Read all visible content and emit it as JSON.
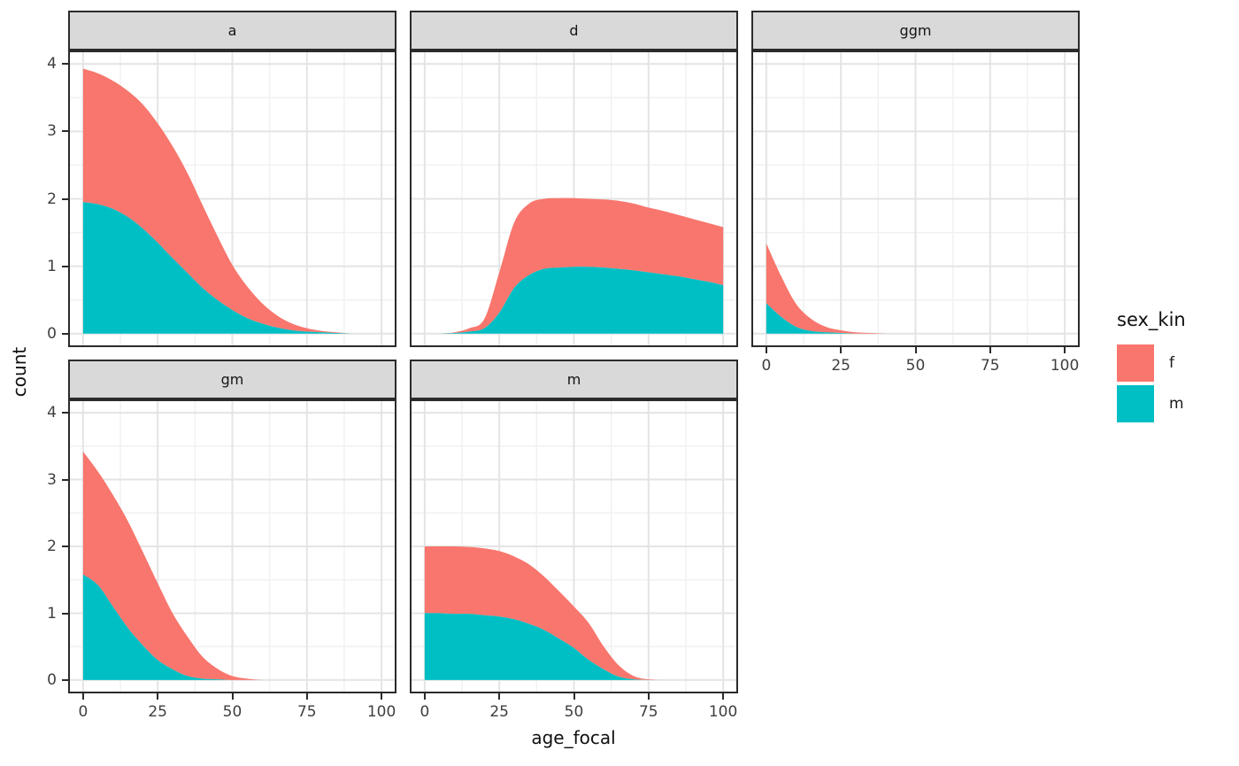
{
  "chart_data": {
    "type": "area",
    "stacked": true,
    "title": "",
    "xlabel": "age_focal",
    "ylabel": "count",
    "xlim": [
      0,
      100
    ],
    "ylim": [
      0,
      4
    ],
    "x_ticks": [
      0,
      25,
      50,
      75,
      100
    ],
    "y_ticks": [
      0,
      1,
      2,
      3,
      4
    ],
    "grid": "major and minor gridlines, light gray on white panel",
    "legend_position": "right",
    "legend_title": "sex_kin",
    "series_colors": {
      "f": "#F8766D",
      "m": "#00BFC4"
    },
    "series_order_bottom_to_top": [
      "m",
      "f"
    ],
    "x": [
      0,
      5,
      10,
      15,
      20,
      25,
      30,
      35,
      40,
      45,
      50,
      55,
      60,
      65,
      70,
      75,
      80,
      85,
      90,
      95,
      100
    ],
    "facets": [
      {
        "label": "a",
        "row": 0,
        "col": 0,
        "m": [
          1.95,
          1.92,
          1.85,
          1.73,
          1.56,
          1.35,
          1.12,
          0.9,
          0.68,
          0.5,
          0.35,
          0.23,
          0.15,
          0.09,
          0.05,
          0.03,
          0.02,
          0.01,
          0,
          0,
          0
        ],
        "f": [
          1.98,
          1.94,
          1.9,
          1.87,
          1.84,
          1.77,
          1.66,
          1.48,
          1.23,
          0.95,
          0.67,
          0.47,
          0.3,
          0.18,
          0.1,
          0.05,
          0.02,
          0.01,
          0,
          0,
          0
        ]
      },
      {
        "label": "d",
        "row": 0,
        "col": 1,
        "m": [
          0,
          0,
          0.01,
          0.03,
          0.08,
          0.31,
          0.68,
          0.87,
          0.96,
          0.98,
          0.99,
          0.99,
          0.98,
          0.96,
          0.94,
          0.91,
          0.88,
          0.85,
          0.81,
          0.77,
          0.72
        ],
        "f": [
          0,
          0,
          0.01,
          0.05,
          0.14,
          0.6,
          0.97,
          1.06,
          1.04,
          1.03,
          1.02,
          1.01,
          1.01,
          1.01,
          0.99,
          0.96,
          0.94,
          0.91,
          0.89,
          0.87,
          0.86
        ]
      },
      {
        "label": "ggm",
        "row": 0,
        "col": 2,
        "m": [
          0.45,
          0.25,
          0.1,
          0.04,
          0.02,
          0.01,
          0,
          0,
          0,
          0,
          0,
          0,
          0,
          0,
          0,
          0,
          0,
          0,
          0,
          0,
          0
        ],
        "f": [
          0.89,
          0.6,
          0.34,
          0.18,
          0.08,
          0.04,
          0.02,
          0.01,
          0,
          0,
          0,
          0,
          0,
          0,
          0,
          0,
          0,
          0,
          0,
          0,
          0
        ]
      },
      {
        "label": "gm",
        "row": 1,
        "col": 0,
        "m": [
          1.58,
          1.42,
          1.1,
          0.78,
          0.52,
          0.3,
          0.16,
          0.06,
          0.02,
          0.01,
          0,
          0,
          0,
          0,
          0,
          0,
          0,
          0,
          0,
          0,
          0
        ],
        "f": [
          1.84,
          1.7,
          1.67,
          1.6,
          1.4,
          1.15,
          0.84,
          0.59,
          0.33,
          0.16,
          0.06,
          0.02,
          0,
          0,
          0,
          0,
          0,
          0,
          0,
          0,
          0
        ]
      },
      {
        "label": "m",
        "row": 1,
        "col": 1,
        "m": [
          1.0,
          1.0,
          0.99,
          0.99,
          0.97,
          0.95,
          0.91,
          0.84,
          0.75,
          0.62,
          0.48,
          0.3,
          0.16,
          0.05,
          0.01,
          0,
          0,
          0,
          0,
          0,
          0
        ],
        "f": [
          1.0,
          1.0,
          1.01,
          1.0,
          1.0,
          0.98,
          0.94,
          0.89,
          0.8,
          0.71,
          0.62,
          0.55,
          0.34,
          0.17,
          0.05,
          0.01,
          0,
          0,
          0,
          0,
          0
        ]
      }
    ]
  },
  "axes": {
    "x_title": "age_focal",
    "y_title": "count",
    "x_tick_labels": [
      "0",
      "25",
      "50",
      "75",
      "100"
    ],
    "y_tick_labels": [
      "0",
      "1",
      "2",
      "3",
      "4"
    ]
  },
  "legend": {
    "title": "sex_kin",
    "items": [
      {
        "label": "f",
        "color": "#F8766D"
      },
      {
        "label": "m",
        "color": "#00BFC4"
      }
    ]
  },
  "style": {
    "strip_fill": "#D9D9D9",
    "panel_border": "#2B2B2B",
    "grid_major": "#E4E4E4",
    "grid_minor": "#F1F1F1",
    "tick_label_color": "#3F3F3F"
  }
}
